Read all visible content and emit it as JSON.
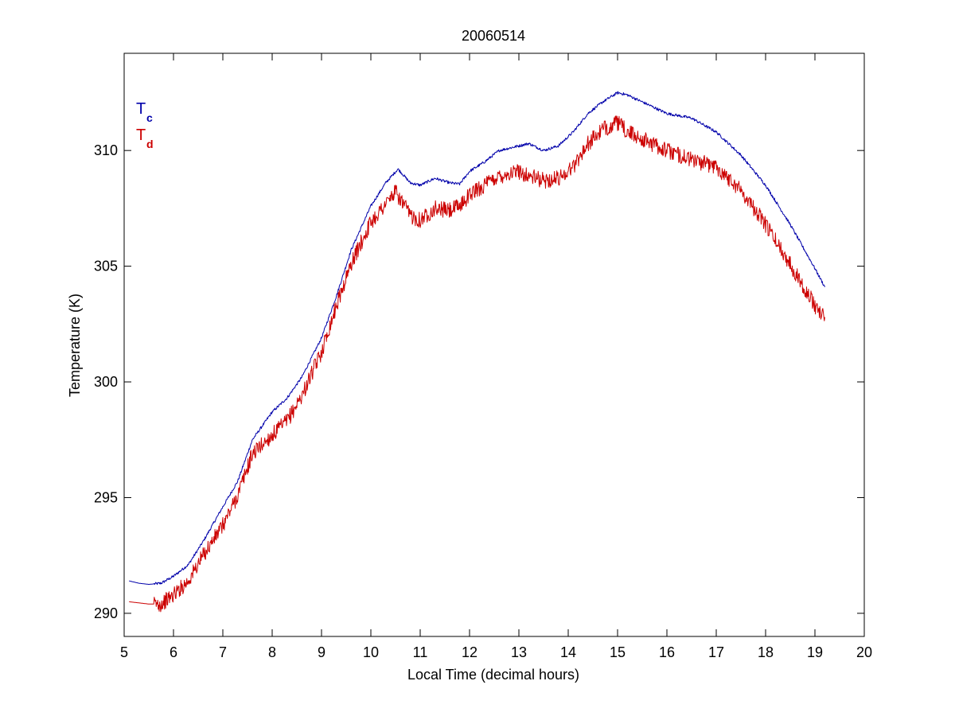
{
  "chart_data": {
    "type": "line",
    "title": "20060514",
    "xlabel": "Local Time (decimal hours)",
    "ylabel": "Temperature (K)",
    "xlim": [
      5,
      20
    ],
    "ylim": [
      289,
      314.2
    ],
    "xticks": [
      5,
      6,
      7,
      8,
      9,
      10,
      11,
      12,
      13,
      14,
      15,
      16,
      17,
      18,
      19,
      20
    ],
    "yticks": [
      290,
      295,
      300,
      305,
      310
    ],
    "grid": false,
    "legend_position": "top-left",
    "series": [
      {
        "name": "T",
        "subscript": "c",
        "color": "#0000aa",
        "noise": 0.06,
        "points": [
          [
            5.1,
            291.4
          ],
          [
            5.3,
            291.3
          ],
          [
            5.5,
            291.25
          ],
          [
            5.75,
            291.3
          ],
          [
            6.0,
            291.6
          ],
          [
            6.3,
            292.1
          ],
          [
            6.6,
            293.1
          ],
          [
            7.0,
            294.6
          ],
          [
            7.3,
            295.7
          ],
          [
            7.6,
            297.5
          ],
          [
            8.0,
            298.7
          ],
          [
            8.3,
            299.3
          ],
          [
            8.6,
            300.2
          ],
          [
            9.0,
            301.9
          ],
          [
            9.3,
            303.7
          ],
          [
            9.6,
            305.7
          ],
          [
            10.0,
            307.6
          ],
          [
            10.3,
            308.6
          ],
          [
            10.55,
            309.2
          ],
          [
            10.8,
            308.6
          ],
          [
            11.0,
            308.5
          ],
          [
            11.3,
            308.8
          ],
          [
            11.6,
            308.6
          ],
          [
            11.8,
            308.55
          ],
          [
            12.0,
            309.1
          ],
          [
            12.3,
            309.5
          ],
          [
            12.6,
            310.0
          ],
          [
            13.0,
            310.2
          ],
          [
            13.2,
            310.3
          ],
          [
            13.5,
            310.0
          ],
          [
            13.8,
            310.2
          ],
          [
            14.1,
            310.8
          ],
          [
            14.4,
            311.6
          ],
          [
            14.7,
            312.1
          ],
          [
            15.0,
            312.5
          ],
          [
            15.2,
            312.4
          ],
          [
            15.5,
            312.1
          ],
          [
            16.0,
            311.6
          ],
          [
            16.5,
            311.4
          ],
          [
            17.0,
            310.8
          ],
          [
            17.5,
            309.8
          ],
          [
            18.0,
            308.5
          ],
          [
            18.5,
            306.8
          ],
          [
            19.0,
            304.9
          ],
          [
            19.2,
            304.1
          ]
        ]
      },
      {
        "name": "T",
        "subscript": "d",
        "color": "#cc0000",
        "noise": 0.35,
        "points": [
          [
            5.1,
            290.5
          ],
          [
            5.3,
            290.45
          ],
          [
            5.5,
            290.4
          ],
          [
            5.75,
            290.4
          ],
          [
            6.0,
            290.8
          ],
          [
            6.3,
            291.4
          ],
          [
            6.6,
            292.5
          ],
          [
            7.0,
            293.8
          ],
          [
            7.3,
            295.1
          ],
          [
            7.6,
            296.9
          ],
          [
            8.0,
            297.7
          ],
          [
            8.3,
            298.3
          ],
          [
            8.6,
            299.4
          ],
          [
            9.0,
            301.3
          ],
          [
            9.3,
            303.3
          ],
          [
            9.6,
            305.1
          ],
          [
            10.0,
            306.9
          ],
          [
            10.3,
            307.7
          ],
          [
            10.5,
            308.2
          ],
          [
            10.8,
            307.2
          ],
          [
            11.0,
            307.0
          ],
          [
            11.3,
            307.5
          ],
          [
            11.6,
            307.4
          ],
          [
            11.8,
            307.6
          ],
          [
            12.0,
            308.1
          ],
          [
            12.3,
            308.5
          ],
          [
            12.6,
            308.9
          ],
          [
            13.0,
            309.1
          ],
          [
            13.2,
            308.9
          ],
          [
            13.5,
            308.7
          ],
          [
            13.8,
            308.8
          ],
          [
            14.1,
            309.3
          ],
          [
            14.4,
            310.3
          ],
          [
            14.7,
            310.9
          ],
          [
            15.0,
            311.2
          ],
          [
            15.2,
            310.8
          ],
          [
            15.5,
            310.5
          ],
          [
            16.0,
            310.0
          ],
          [
            16.5,
            309.6
          ],
          [
            17.0,
            309.3
          ],
          [
            17.5,
            308.3
          ],
          [
            18.0,
            306.8
          ],
          [
            18.5,
            305.1
          ],
          [
            19.0,
            303.3
          ],
          [
            19.2,
            302.8
          ]
        ]
      }
    ]
  }
}
